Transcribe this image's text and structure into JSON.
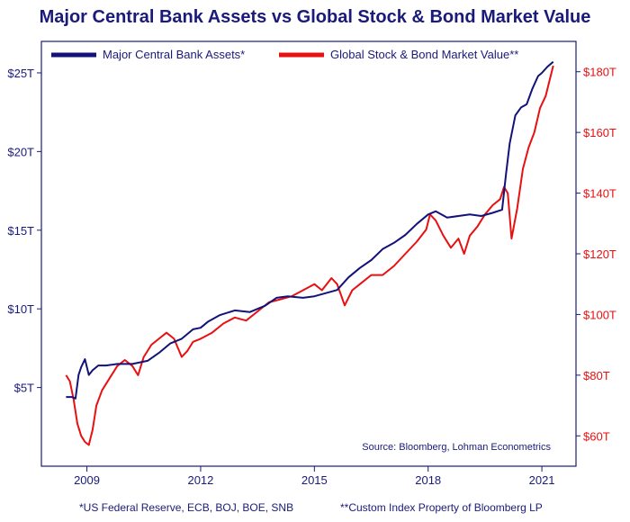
{
  "chart_data": {
    "type": "line",
    "title": "Major Central Bank Assets vs Global Stock & Bond Market Value",
    "xlabel": "",
    "ylabel_left": "",
    "ylabel_right": "",
    "x_range": [
      2007.8,
      2021.9
    ],
    "x_ticks": [
      2009,
      2012,
      2015,
      2018,
      2021
    ],
    "x_tick_labels": [
      "2009",
      "2012",
      "2015",
      "2018",
      "2021"
    ],
    "y_left_range": [
      0,
      27
    ],
    "y_left_ticks": [
      5,
      10,
      15,
      20,
      25
    ],
    "y_left_tick_labels": [
      "$5T",
      "$10T",
      "$15T",
      "$20T",
      "$25T"
    ],
    "y_right_range": [
      50,
      190
    ],
    "y_right_ticks": [
      60,
      80,
      100,
      120,
      140,
      160,
      180
    ],
    "y_right_tick_labels": [
      "$60T",
      "$80T",
      "$100T",
      "$120T",
      "$140T",
      "$160T",
      "$180T"
    ],
    "legend_position": "top",
    "grid": false,
    "source": "Source: Bloomberg, Lohman Econometrics",
    "series": [
      {
        "name": "Major Central Bank Assets*",
        "axis": "left",
        "color": "#12127a",
        "x": [
          2008.45,
          2008.6,
          2008.7,
          2008.78,
          2008.85,
          2008.95,
          2009.05,
          2009.15,
          2009.3,
          2009.5,
          2009.8,
          2010.2,
          2010.6,
          2010.9,
          2011.2,
          2011.5,
          2011.8,
          2012.0,
          2012.2,
          2012.5,
          2012.9,
          2013.3,
          2013.7,
          2014.0,
          2014.3,
          2014.7,
          2015.0,
          2015.3,
          2015.6,
          2015.9,
          2016.2,
          2016.5,
          2016.8,
          2017.1,
          2017.4,
          2017.7,
          2018.0,
          2018.2,
          2018.5,
          2018.8,
          2019.1,
          2019.4,
          2019.7,
          2019.95,
          2020.05,
          2020.15,
          2020.3,
          2020.45,
          2020.6,
          2020.75,
          2020.9,
          2021.0,
          2021.15,
          2021.3
        ],
        "values": [
          4.4,
          4.4,
          4.3,
          5.8,
          6.3,
          6.8,
          5.8,
          6.1,
          6.4,
          6.4,
          6.5,
          6.5,
          6.7,
          7.2,
          7.8,
          8.1,
          8.7,
          8.8,
          9.2,
          9.6,
          9.9,
          9.8,
          10.2,
          10.7,
          10.8,
          10.7,
          10.8,
          11.0,
          11.2,
          12.0,
          12.6,
          13.1,
          13.8,
          14.2,
          14.7,
          15.4,
          16.0,
          16.2,
          15.8,
          15.9,
          16.0,
          15.9,
          16.1,
          16.3,
          18.5,
          20.5,
          22.3,
          22.8,
          23.0,
          24.0,
          24.8,
          25.0,
          25.4,
          25.7
        ]
      },
      {
        "name": "Global Stock & Bond Market Value**",
        "axis": "right",
        "color": "#e81010",
        "x": [
          2008.45,
          2008.55,
          2008.65,
          2008.75,
          2008.85,
          2008.95,
          2009.05,
          2009.15,
          2009.25,
          2009.4,
          2009.6,
          2009.8,
          2010.0,
          2010.2,
          2010.35,
          2010.5,
          2010.7,
          2010.9,
          2011.1,
          2011.3,
          2011.5,
          2011.65,
          2011.8,
          2012.0,
          2012.3,
          2012.6,
          2012.9,
          2013.2,
          2013.5,
          2013.8,
          2014.1,
          2014.4,
          2014.7,
          2015.0,
          2015.2,
          2015.45,
          2015.6,
          2015.8,
          2016.0,
          2016.2,
          2016.5,
          2016.8,
          2017.1,
          2017.4,
          2017.7,
          2017.95,
          2018.05,
          2018.2,
          2018.4,
          2018.6,
          2018.8,
          2018.95,
          2019.1,
          2019.3,
          2019.5,
          2019.7,
          2019.9,
          2020.0,
          2020.1,
          2020.2,
          2020.35,
          2020.5,
          2020.65,
          2020.8,
          2020.95,
          2021.1,
          2021.3
        ],
        "values": [
          80,
          78,
          72,
          64,
          60,
          58,
          57,
          62,
          70,
          75,
          79,
          83,
          85,
          83,
          80,
          86,
          90,
          92,
          94,
          92,
          86,
          88,
          91,
          92,
          94,
          97,
          99,
          98,
          101,
          104,
          105,
          106,
          108,
          110,
          108,
          112,
          110,
          103,
          108,
          110,
          113,
          113,
          116,
          120,
          124,
          128,
          133,
          131,
          126,
          122,
          125,
          120,
          126,
          129,
          133,
          136,
          138,
          142,
          140,
          125,
          135,
          148,
          155,
          160,
          168,
          172,
          182
        ]
      }
    ]
  },
  "footnotes": {
    "left": "*US Federal Reserve, ECB, BOJ, BOE, SNB",
    "right": "**Custom Index Property of Bloomberg LP"
  }
}
